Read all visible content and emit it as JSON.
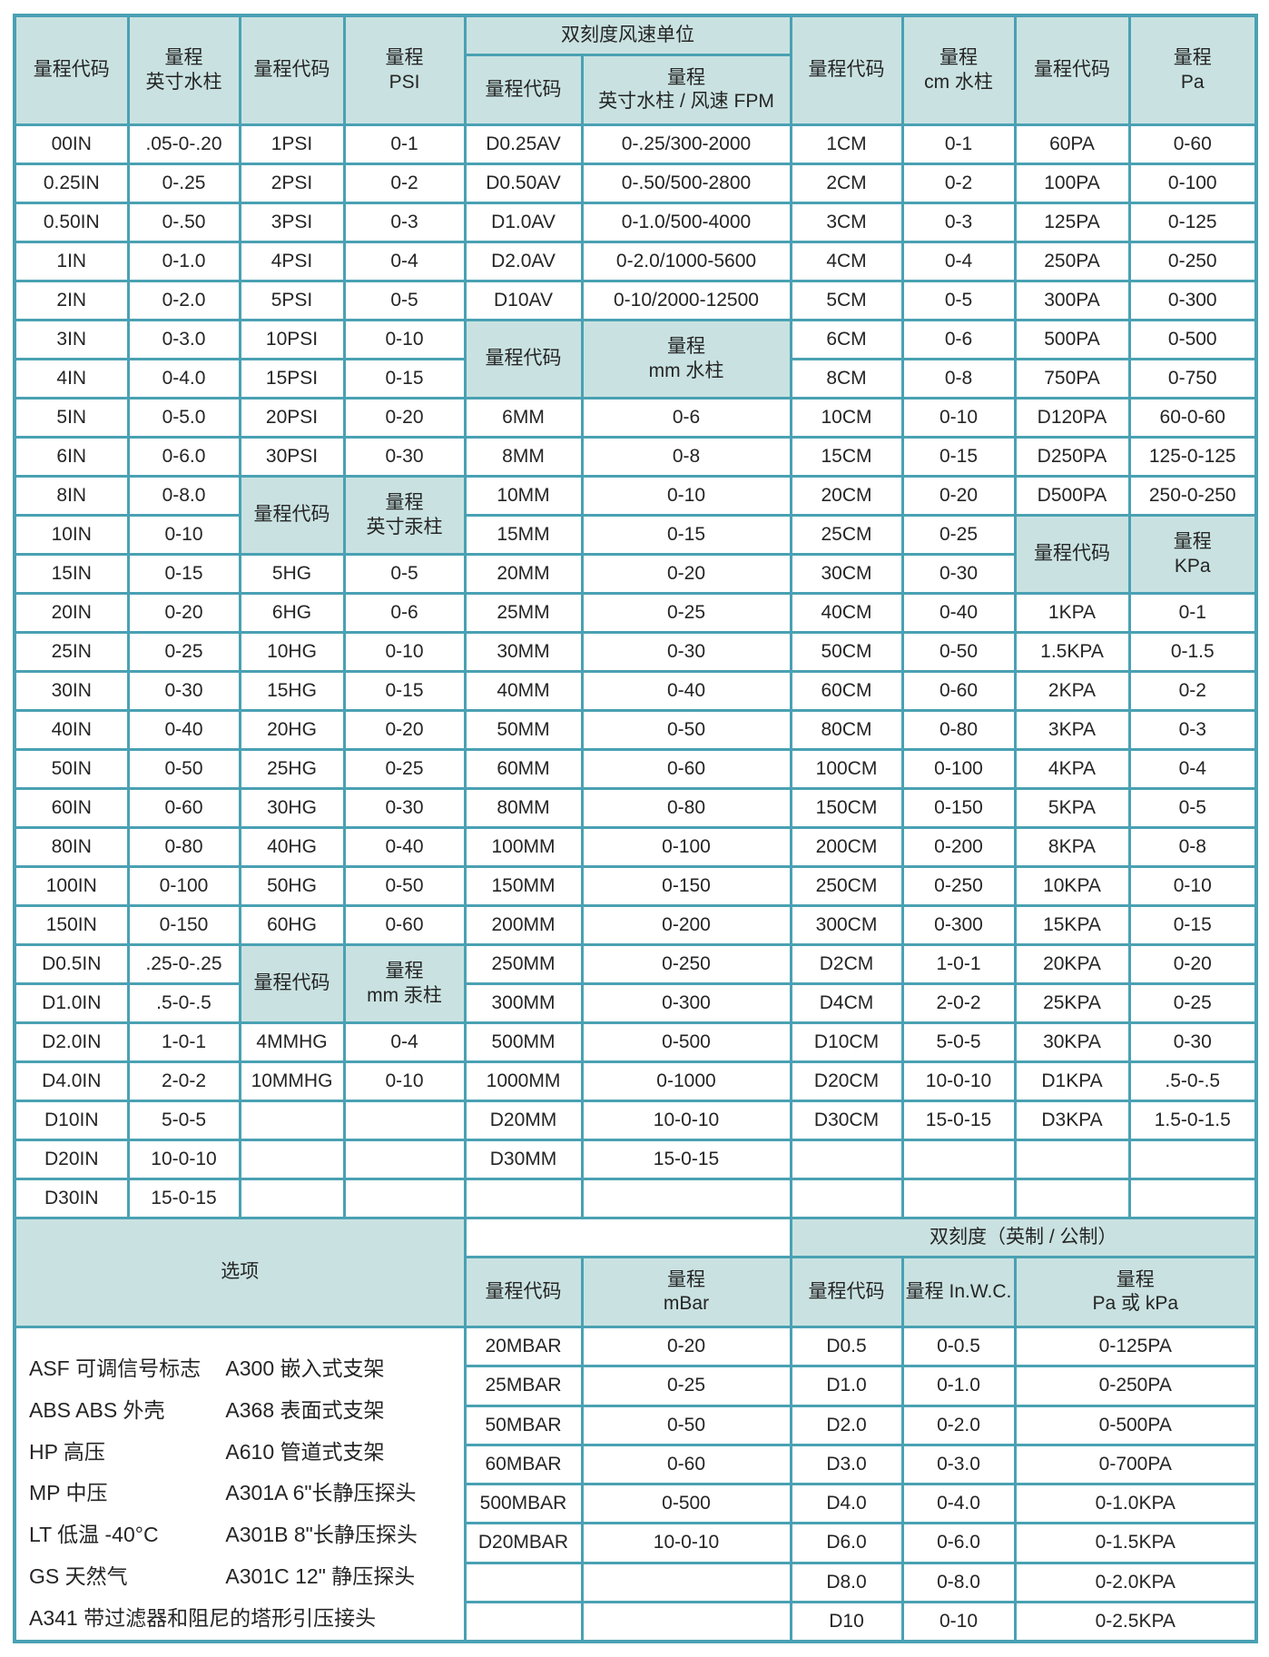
{
  "header": {
    "c1": "量程代码",
    "c2": "量程\n英寸水柱",
    "c3": "量程代码",
    "c4": "量程\nPSI",
    "dual": "双刻度风速单位",
    "c5": "量程代码",
    "c6": "量程\n英寸水柱 / 风速 FPM",
    "c7": "量程代码",
    "c8": "量程\ncm 水柱",
    "c9": "量程代码",
    "c10": "量程\nPa"
  },
  "main_rows": [
    [
      "00IN",
      ".05-0-.20",
      "1PSI",
      "0-1",
      "D0.25AV",
      "0-.25/300-2000",
      "1CM",
      "0-1",
      "60PA",
      "0-60"
    ],
    [
      "0.25IN",
      "0-.25",
      "2PSI",
      "0-2",
      "D0.50AV",
      "0-.50/500-2800",
      "2CM",
      "0-2",
      "100PA",
      "0-100"
    ],
    [
      "0.50IN",
      "0-.50",
      "3PSI",
      "0-3",
      "D1.0AV",
      "0-1.0/500-4000",
      "3CM",
      "0-3",
      "125PA",
      "0-125"
    ],
    [
      "1IN",
      "0-1.0",
      "4PSI",
      "0-4",
      "D2.0AV",
      "0-2.0/1000-5600",
      "4CM",
      "0-4",
      "250PA",
      "0-250"
    ],
    [
      "2IN",
      "0-2.0",
      "5PSI",
      "0-5",
      "D10AV",
      "0-10/2000-12500",
      "5CM",
      "0-5",
      "300PA",
      "0-300"
    ],
    [
      "3IN",
      "0-3.0",
      "10PSI",
      "0-10",
      {
        "v": "量程代码",
        "h": true,
        "rs": 2
      },
      {
        "v": "量程\nmm 水柱",
        "h": true,
        "rs": 2
      },
      "6CM",
      "0-6",
      "500PA",
      "0-500"
    ],
    [
      "4IN",
      "0-4.0",
      "15PSI",
      "0-15",
      "8CM",
      "0-8",
      "750PA",
      "0-750"
    ],
    [
      "5IN",
      "0-5.0",
      "20PSI",
      "0-20",
      "6MM",
      "0-6",
      "10CM",
      "0-10",
      "D120PA",
      "60-0-60"
    ],
    [
      "6IN",
      "0-6.0",
      "30PSI",
      "0-30",
      "8MM",
      "0-8",
      "15CM",
      "0-15",
      "D250PA",
      "125-0-125"
    ],
    [
      "8IN",
      "0-8.0",
      {
        "v": "量程代码",
        "h": true,
        "rs": 2
      },
      {
        "v": "量程\n英寸汞柱",
        "h": true,
        "rs": 2
      },
      "10MM",
      "0-10",
      "20CM",
      "0-20",
      "D500PA",
      "250-0-250"
    ],
    [
      "10IN",
      "0-10",
      "15MM",
      "0-15",
      "25CM",
      "0-25",
      {
        "v": "量程代码",
        "h": true,
        "rs": 2
      },
      {
        "v": "量程\nKPa",
        "h": true,
        "rs": 2
      }
    ],
    [
      "15IN",
      "0-15",
      "5HG",
      "0-5",
      "20MM",
      "0-20",
      "30CM",
      "0-30"
    ],
    [
      "20IN",
      "0-20",
      "6HG",
      "0-6",
      "25MM",
      "0-25",
      "40CM",
      "0-40",
      "1KPA",
      "0-1"
    ],
    [
      "25IN",
      "0-25",
      "10HG",
      "0-10",
      "30MM",
      "0-30",
      "50CM",
      "0-50",
      "1.5KPA",
      "0-1.5"
    ],
    [
      "30IN",
      "0-30",
      "15HG",
      "0-15",
      "40MM",
      "0-40",
      "60CM",
      "0-60",
      "2KPA",
      "0-2"
    ],
    [
      "40IN",
      "0-40",
      "20HG",
      "0-20",
      "50MM",
      "0-50",
      "80CM",
      "0-80",
      "3KPA",
      "0-3"
    ],
    [
      "50IN",
      "0-50",
      "25HG",
      "0-25",
      "60MM",
      "0-60",
      "100CM",
      "0-100",
      "4KPA",
      "0-4"
    ],
    [
      "60IN",
      "0-60",
      "30HG",
      "0-30",
      "80MM",
      "0-80",
      "150CM",
      "0-150",
      "5KPA",
      "0-5"
    ],
    [
      "80IN",
      "0-80",
      "40HG",
      "0-40",
      "100MM",
      "0-100",
      "200CM",
      "0-200",
      "8KPA",
      "0-8"
    ],
    [
      "100IN",
      "0-100",
      "50HG",
      "0-50",
      "150MM",
      "0-150",
      "250CM",
      "0-250",
      "10KPA",
      "0-10"
    ],
    [
      "150IN",
      "0-150",
      "60HG",
      "0-60",
      "200MM",
      "0-200",
      "300CM",
      "0-300",
      "15KPA",
      "0-15"
    ],
    [
      "D0.5IN",
      ".25-0-.25",
      {
        "v": "量程代码",
        "h": true,
        "rs": 2
      },
      {
        "v": "量程\nmm 汞柱",
        "h": true,
        "rs": 2
      },
      "250MM",
      "0-250",
      "D2CM",
      "1-0-1",
      "20KPA",
      "0-20"
    ],
    [
      "D1.0IN",
      ".5-0-.5",
      "300MM",
      "0-300",
      "D4CM",
      "2-0-2",
      "25KPA",
      "0-25"
    ],
    [
      "D2.0IN",
      "1-0-1",
      "4MMHG",
      "0-4",
      "500MM",
      "0-500",
      "D10CM",
      "5-0-5",
      "30KPA",
      "0-30"
    ],
    [
      "D4.0IN",
      "2-0-2",
      "10MMHG",
      "0-10",
      "1000MM",
      "0-1000",
      "D20CM",
      "10-0-10",
      "D1KPA",
      ".5-0-.5"
    ],
    [
      "D10IN",
      "5-0-5",
      "",
      "",
      "D20MM",
      "10-0-10",
      "D30CM",
      "15-0-15",
      "D3KPA",
      "1.5-0-1.5"
    ],
    [
      "D20IN",
      "10-0-10",
      "",
      "",
      "D30MM",
      "15-0-15",
      "",
      "",
      "",
      ""
    ],
    [
      "D30IN",
      "15-0-15",
      "",
      "",
      "",
      "",
      "",
      "",
      "",
      ""
    ]
  ],
  "bottom_rows": [
    [
      {
        "v": "选项",
        "h": true,
        "cs": 4,
        "rs": 2
      },
      {
        "v": "",
        "cs": 2
      },
      {
        "v": "双刻度（英制 / 公制）",
        "h": true,
        "cs": 4
      }
    ],
    [
      {
        "v": "量程代码",
        "h": true
      },
      {
        "v": "量程\nmBar",
        "h": true
      },
      {
        "v": "量程代码",
        "h": true
      },
      {
        "v": "量程 In.W.C.",
        "h": true
      },
      {
        "v": "量程\nPa 或 kPa",
        "h": true,
        "cs": 2
      }
    ],
    [
      {
        "opts": true,
        "cs": 4,
        "rs": 8
      },
      "20MBAR",
      "0-20",
      "D0.5",
      "0-0.5",
      {
        "v": "0-125PA",
        "cs": 2
      }
    ],
    [
      "25MBAR",
      "0-25",
      "D1.0",
      "0-1.0",
      {
        "v": "0-250PA",
        "cs": 2
      }
    ],
    [
      "50MBAR",
      "0-50",
      "D2.0",
      "0-2.0",
      {
        "v": "0-500PA",
        "cs": 2
      }
    ],
    [
      "60MBAR",
      "0-60",
      "D3.0",
      "0-3.0",
      {
        "v": "0-700PA",
        "cs": 2
      }
    ],
    [
      "500MBAR",
      "0-500",
      "D4.0",
      "0-4.0",
      {
        "v": "0-1.0KPA",
        "cs": 2
      }
    ],
    [
      "D20MBAR",
      "10-0-10",
      "D6.0",
      "0-6.0",
      {
        "v": "0-1.5KPA",
        "cs": 2
      }
    ],
    [
      "",
      "",
      "D8.0",
      "0-8.0",
      {
        "v": "0-2.0KPA",
        "cs": 2
      }
    ],
    [
      "",
      "",
      "D10",
      "0-10",
      {
        "v": "0-2.5KPA",
        "cs": 2
      }
    ]
  ],
  "options": {
    "title": "选项",
    "left": [
      "ASF 可调信号标志",
      "ABS ABS 外壳",
      "HP 高压",
      "MP 中压",
      "LT 低温 -40°C",
      "GS 天然气"
    ],
    "right": [
      "A300 嵌入式支架",
      "A368 表面式支架",
      "A610 管道式支架",
      "A301A 6\"长静压探头",
      "A301B 8\"长静压探头",
      "A301C 12\" 静压探头"
    ],
    "full": "A341 带过滤器和阻尼的塔形引压接头"
  },
  "colors": {
    "border_teal": "#4aa1b3",
    "header_bg": "#c9e2e1",
    "text": "#252525"
  }
}
